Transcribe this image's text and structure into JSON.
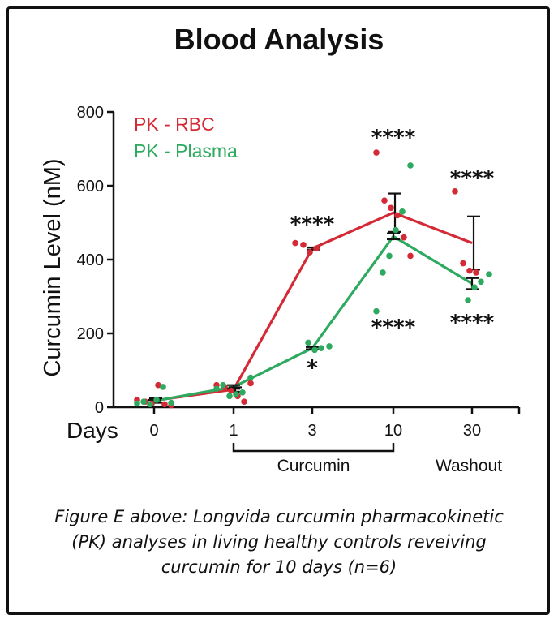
{
  "title": "Blood Analysis",
  "caption": {
    "line1": "Figure E above: Longvida curcumin pharmacokinetic",
    "line2": "(PK) analyses in living healthy controls reveiving",
    "line3": "curcumin for 10 days (n=6)"
  },
  "chart_data": {
    "type": "line",
    "title": "Blood Analysis",
    "xlabel": "Days",
    "ylabel": "Curcumin Level (nM)",
    "ylim": [
      0,
      800
    ],
    "yticks": [
      0,
      200,
      400,
      600,
      800
    ],
    "categories": [
      "0",
      "1",
      "3",
      "10",
      "30"
    ],
    "groups": [
      {
        "label": "Curcumin",
        "from": "1",
        "to": "10"
      },
      {
        "label": "Washout",
        "at": "30"
      }
    ],
    "legend_position": "top-left",
    "series": [
      {
        "name": "PK - RBC",
        "color": "#d42a36",
        "means": [
          18,
          48,
          430,
          527,
          445
        ],
        "sem": [
          6,
          6,
          3,
          52,
          72
        ],
        "points": [
          [
            20,
            15,
            10,
            60,
            8,
            5
          ],
          [
            60,
            55,
            45,
            30,
            15,
            65
          ],
          [
            445,
            440,
            420,
            430
          ],
          [
            690,
            560,
            540,
            520,
            460,
            410
          ],
          [
            585,
            390,
            370,
            365
          ]
        ],
        "significance": [
          "",
          "",
          "****",
          "****",
          "****"
        ]
      },
      {
        "name": "PK - Plasma",
        "color": "#2daa5f",
        "means": [
          17,
          55,
          160,
          463,
          335
        ],
        "sem": [
          3,
          5,
          3,
          8,
          15
        ],
        "points": [
          [
            12,
            55,
            20,
            8,
            15,
            10
          ],
          [
            80,
            40,
            35,
            30,
            60,
            50
          ],
          [
            165,
            160,
            155,
            175
          ],
          [
            655,
            530,
            480,
            410,
            365,
            260
          ],
          [
            360,
            340,
            325,
            290
          ]
        ],
        "significance": [
          "",
          "",
          "*",
          "****",
          "****"
        ]
      }
    ]
  }
}
